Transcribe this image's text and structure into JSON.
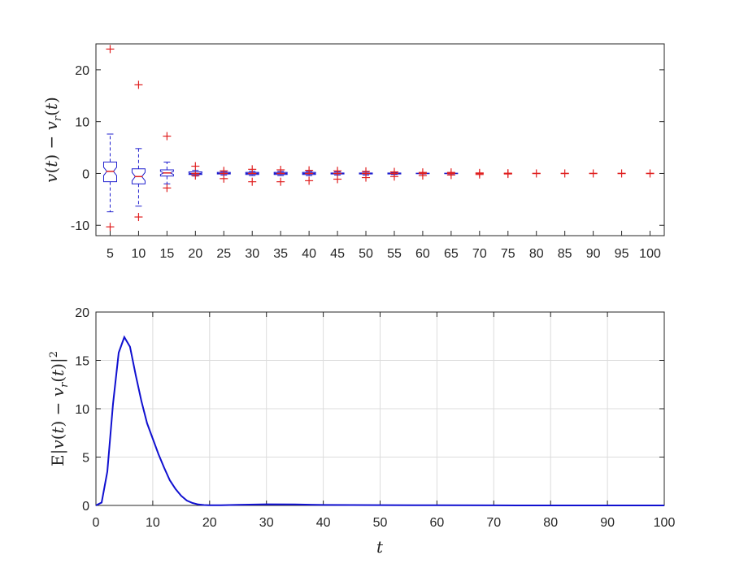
{
  "chart_data": [
    {
      "type": "box",
      "xlabel": "",
      "ylabel": "v(t) − v_r(t)",
      "ylim": [
        -12,
        25
      ],
      "yticks": [
        -10,
        0,
        10,
        20
      ],
      "categories": [
        "5",
        "10",
        "15",
        "20",
        "25",
        "30",
        "35",
        "40",
        "45",
        "50",
        "55",
        "60",
        "65",
        "70",
        "75",
        "80",
        "85",
        "90",
        "95",
        "100"
      ],
      "notched": true,
      "box_color": "#1f1fcf",
      "outlier_color": "#e02020",
      "boxes": [
        {
          "q1": -1.6,
          "med": 0.4,
          "q3": 2.2,
          "notch_lo": -0.4,
          "notch_hi": 1.2,
          "wlo": -7.4,
          "whi": 7.6,
          "outliers": [
            -10.3,
            24.0
          ]
        },
        {
          "q1": -2.0,
          "med": -0.6,
          "q3": 0.9,
          "notch_lo": -1.4,
          "notch_hi": 0.2,
          "wlo": -6.3,
          "whi": 4.8,
          "outliers": [
            -8.4,
            17.1
          ]
        },
        {
          "q1": -0.5,
          "med": 0.1,
          "q3": 0.7,
          "notch_lo": -0.2,
          "notch_hi": 0.4,
          "wlo": -2.0,
          "whi": 2.2,
          "outliers": [
            -2.8,
            7.2
          ]
        },
        {
          "q1": -0.2,
          "med": 0.0,
          "q3": 0.3,
          "notch_lo": -0.1,
          "notch_hi": 0.1,
          "wlo": -0.5,
          "whi": 0.6,
          "outliers": [
            -0.4,
            1.4
          ]
        },
        {
          "q1": -0.1,
          "med": 0.0,
          "q3": 0.2,
          "notch_lo": -0.05,
          "notch_hi": 0.05,
          "wlo": -0.3,
          "whi": 0.4,
          "outliers": [
            -1.0,
            0.5
          ]
        },
        {
          "q1": -0.2,
          "med": 0.0,
          "q3": 0.2,
          "notch_lo": -0.05,
          "notch_hi": 0.05,
          "wlo": -0.4,
          "whi": 0.4,
          "outliers": [
            -1.6,
            0.8
          ]
        },
        {
          "q1": -0.2,
          "med": 0.0,
          "q3": 0.2,
          "notch_lo": -0.05,
          "notch_hi": 0.05,
          "wlo": -0.4,
          "whi": 0.4,
          "outliers": [
            -1.6,
            0.7
          ]
        },
        {
          "q1": -0.2,
          "med": 0.0,
          "q3": 0.2,
          "notch_lo": -0.05,
          "notch_hi": 0.05,
          "wlo": -0.4,
          "whi": 0.4,
          "outliers": [
            -1.4,
            0.6
          ]
        },
        {
          "q1": -0.1,
          "med": 0.0,
          "q3": 0.1,
          "notch_lo": -0.03,
          "notch_hi": 0.03,
          "wlo": -0.3,
          "whi": 0.3,
          "outliers": [
            -1.1,
            0.5
          ]
        },
        {
          "q1": -0.1,
          "med": 0.0,
          "q3": 0.1,
          "notch_lo": -0.03,
          "notch_hi": 0.03,
          "wlo": -0.3,
          "whi": 0.3,
          "outliers": [
            -0.8,
            0.4
          ]
        },
        {
          "q1": -0.1,
          "med": 0.0,
          "q3": 0.1,
          "notch_lo": -0.03,
          "notch_hi": 0.03,
          "wlo": -0.2,
          "whi": 0.2,
          "outliers": [
            -0.6,
            0.3
          ]
        },
        {
          "q1": -0.05,
          "med": 0.0,
          "q3": 0.05,
          "notch_lo": -0.02,
          "notch_hi": 0.02,
          "wlo": -0.1,
          "whi": 0.1,
          "outliers": [
            -0.4,
            0.2
          ]
        },
        {
          "q1": -0.05,
          "med": 0.0,
          "q3": 0.05,
          "notch_lo": -0.02,
          "notch_hi": 0.02,
          "wlo": -0.1,
          "whi": 0.1,
          "outliers": [
            -0.3,
            0.2
          ]
        },
        {
          "q1": -0.03,
          "med": 0.0,
          "q3": 0.03,
          "notch_lo": -0.01,
          "notch_hi": 0.01,
          "wlo": -0.06,
          "whi": 0.06,
          "outliers": [
            -0.2,
            0.1
          ]
        },
        {
          "q1": -0.02,
          "med": 0.0,
          "q3": 0.02,
          "notch_lo": -0.01,
          "notch_hi": 0.01,
          "wlo": -0.04,
          "whi": 0.04,
          "outliers": [
            -0.1,
            0.05
          ]
        },
        {
          "q1": 0,
          "med": 0,
          "q3": 0,
          "notch_lo": 0,
          "notch_hi": 0,
          "wlo": 0,
          "whi": 0,
          "outliers": [
            0.0
          ]
        },
        {
          "q1": 0,
          "med": 0,
          "q3": 0,
          "notch_lo": 0,
          "notch_hi": 0,
          "wlo": 0,
          "whi": 0,
          "outliers": [
            0.0
          ]
        },
        {
          "q1": 0,
          "med": 0,
          "q3": 0,
          "notch_lo": 0,
          "notch_hi": 0,
          "wlo": 0,
          "whi": 0,
          "outliers": [
            0.0
          ]
        },
        {
          "q1": 0,
          "med": 0,
          "q3": 0,
          "notch_lo": 0,
          "notch_hi": 0,
          "wlo": 0,
          "whi": 0,
          "outliers": [
            0.0
          ]
        },
        {
          "q1": 0,
          "med": 0,
          "q3": 0,
          "notch_lo": 0,
          "notch_hi": 0,
          "wlo": 0,
          "whi": 0,
          "outliers": [
            0.0
          ]
        }
      ]
    },
    {
      "type": "line",
      "xlabel": "t",
      "ylabel": "E|v(t) − v_r(t)|²",
      "xlim": [
        0,
        100
      ],
      "ylim": [
        0,
        20
      ],
      "xticks": [
        0,
        10,
        20,
        30,
        40,
        50,
        60,
        70,
        80,
        90,
        100
      ],
      "yticks": [
        0,
        5,
        10,
        15,
        20
      ],
      "grid": true,
      "line_color": "#1010d0",
      "x": [
        0,
        1,
        2,
        3,
        4,
        5,
        6,
        7,
        8,
        9,
        10,
        11,
        12,
        13,
        14,
        15,
        16,
        17,
        18,
        19,
        20,
        22,
        25,
        30,
        35,
        40,
        50,
        60,
        70,
        80,
        90,
        100
      ],
      "y": [
        0.0,
        0.3,
        3.5,
        10.5,
        15.8,
        17.4,
        16.4,
        13.5,
        10.8,
        8.5,
        6.9,
        5.3,
        3.9,
        2.6,
        1.7,
        1.0,
        0.5,
        0.25,
        0.1,
        0.04,
        0.02,
        0.02,
        0.06,
        0.12,
        0.1,
        0.05,
        0.03,
        0.02,
        0.01,
        0.0,
        0.0,
        0.0
      ]
    }
  ]
}
